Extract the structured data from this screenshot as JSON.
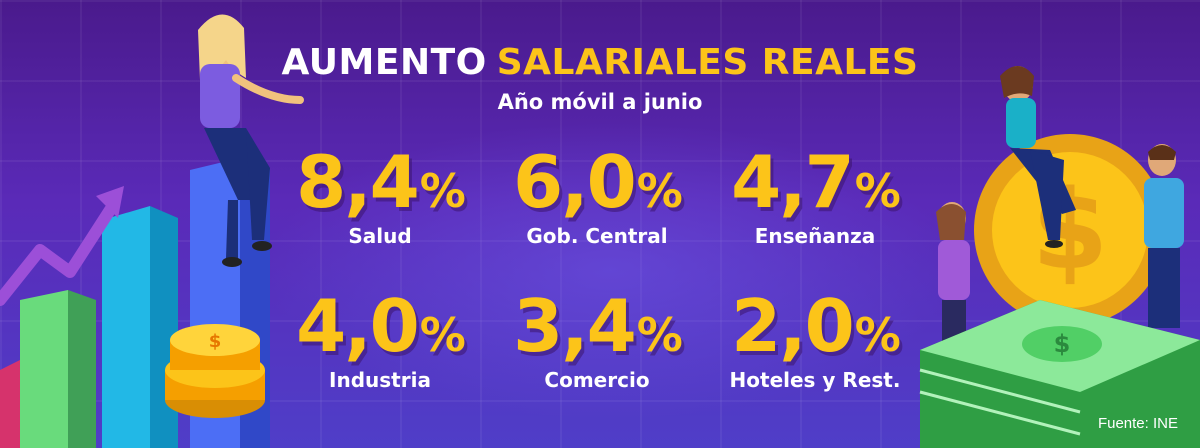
{
  "header": {
    "title_part1": "AUMENTO",
    "title_part2": "SALARIALES REALES",
    "subtitle": "Año móvil a junio"
  },
  "stats": [
    {
      "value": "8,4",
      "unit": "%",
      "label": "Salud"
    },
    {
      "value": "6,0",
      "unit": "%",
      "label": "Gob. Central"
    },
    {
      "value": "4,7",
      "unit": "%",
      "label": "Enseñanza"
    },
    {
      "value": "4,0",
      "unit": "%",
      "label": "Industria"
    },
    {
      "value": "3,4",
      "unit": "%",
      "label": "Comercio"
    },
    {
      "value": "2,0",
      "unit": "%",
      "label": "Hoteles y Rest."
    }
  ],
  "footer": {
    "source": "Fuente: INE"
  },
  "colors": {
    "accent": "#fcc419",
    "text": "#ffffff",
    "background_top": "#4a1a8c",
    "background_bottom": "#4f3ec8"
  },
  "illustrations": {
    "left": "bar-chart-with-woman-and-coins",
    "right": "giant-coin-with-people-and-cash-stack"
  }
}
